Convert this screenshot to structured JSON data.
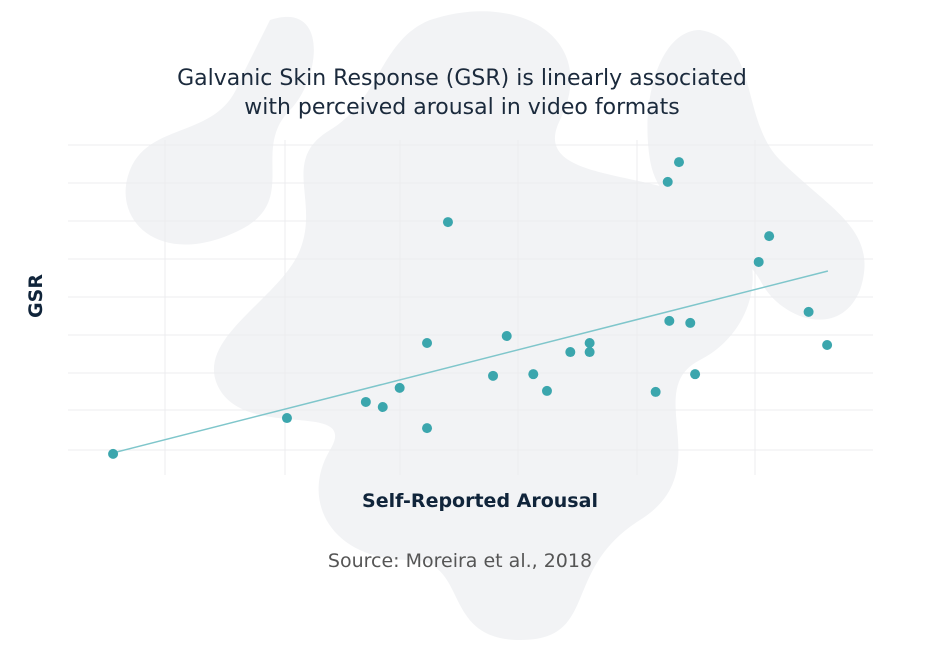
{
  "chart_data": {
    "type": "scatter",
    "title": "Galvanic Skin Response (GSR) is linearly associated with perceived arousal in video formats",
    "x_label": "Self-Reported Arousal",
    "y_label": "GSR",
    "source": "Source: Moreira et al., 2018",
    "xlim": [
      0,
      100
    ],
    "ylim": [
      0,
      100
    ],
    "color": "#3ba6ad",
    "x": [
      5.6,
      27.2,
      37.0,
      39.1,
      41.2,
      44.6,
      44.6,
      47.2,
      52.8,
      54.5,
      57.8,
      59.5,
      62.4,
      64.8,
      64.8,
      73.0,
      74.5,
      74.7,
      75.9,
      77.3,
      77.9,
      85.8,
      87.1,
      92.0,
      94.3
    ],
    "values": [
      6.3,
      17.0,
      21.8,
      20.3,
      26.0,
      14.0,
      39.4,
      75.5,
      29.6,
      41.5,
      30.1,
      25.1,
      36.7,
      36.7,
      39.4,
      24.8,
      87.5,
      46.0,
      93.4,
      45.4,
      30.1,
      63.6,
      71.3,
      48.7,
      38.8
    ],
    "trendline": {
      "color": "#7fc6cb",
      "x": [
        5.6,
        94.4
      ],
      "values": [
        6.6,
        60.9
      ]
    }
  }
}
